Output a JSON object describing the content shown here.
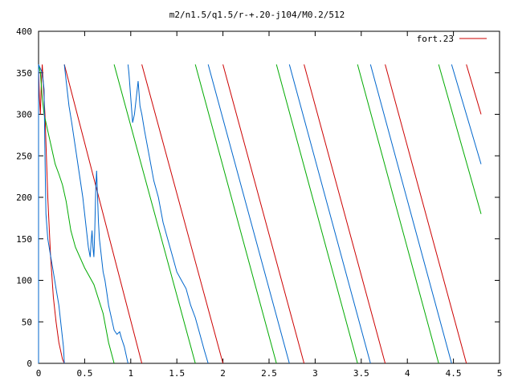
{
  "chart_data": {
    "type": "line",
    "title": "m2/n1.5/q1.5/r-+.20-j104/M0.2/512",
    "xlabel": "",
    "ylabel": "",
    "xlim": [
      0,
      5
    ],
    "ylim": [
      0,
      400
    ],
    "x_ticks": [
      0,
      0.5,
      1,
      1.5,
      2,
      2.5,
      3,
      3.5,
      4,
      4.5,
      5
    ],
    "x_tick_labels": [
      "0",
      "0.5",
      "1",
      "1.5",
      "2",
      "2.5",
      "3",
      "3.5",
      "4",
      "4.5",
      "5"
    ],
    "y_ticks": [
      0,
      50,
      100,
      150,
      200,
      250,
      300,
      350,
      400
    ],
    "y_tick_labels": [
      "0",
      "50",
      "100",
      "150",
      "200",
      "250",
      "300",
      "350",
      "400"
    ],
    "grid": false,
    "legend_position": "top-right",
    "legend": [
      {
        "label": "fort.23",
        "color": "#cc0000"
      }
    ],
    "series": [
      {
        "color": "#cc0000",
        "segments": [
          [
            [
              0.0,
              0
            ],
            [
              0.0,
              355
            ],
            [
              0.01,
              320
            ],
            [
              0.02,
              300
            ],
            [
              0.03,
              335
            ],
            [
              0.04,
              360
            ],
            [
              0.05,
              340
            ],
            [
              0.07,
              300
            ],
            [
              0.1,
              200
            ],
            [
              0.13,
              130
            ],
            [
              0.16,
              80
            ],
            [
              0.19,
              50
            ],
            [
              0.22,
              25
            ],
            [
              0.26,
              5
            ],
            [
              0.28,
              0
            ]
          ],
          [
            [
              0.28,
              360
            ],
            [
              1.12,
              0
            ]
          ],
          [
            [
              1.12,
              360
            ],
            [
              2.0,
              0
            ]
          ],
          [
            [
              2.0,
              360
            ],
            [
              2.88,
              0
            ]
          ],
          [
            [
              2.88,
              360
            ],
            [
              3.76,
              0
            ]
          ],
          [
            [
              3.76,
              360
            ],
            [
              4.64,
              0
            ]
          ],
          [
            [
              4.64,
              360
            ],
            [
              4.8,
              300
            ]
          ]
        ]
      },
      {
        "color": "#00aa00",
        "segments": [
          [
            [
              0.0,
              360
            ],
            [
              0.02,
              350
            ],
            [
              0.04,
              320
            ],
            [
              0.06,
              300
            ],
            [
              0.1,
              280
            ],
            [
              0.14,
              260
            ],
            [
              0.18,
              240
            ],
            [
              0.22,
              228
            ],
            [
              0.26,
              215
            ],
            [
              0.3,
              195
            ],
            [
              0.35,
              160
            ],
            [
              0.4,
              140
            ],
            [
              0.5,
              115
            ],
            [
              0.6,
              95
            ],
            [
              0.7,
              60
            ],
            [
              0.76,
              25
            ],
            [
              0.82,
              0
            ]
          ],
          [
            [
              0.82,
              360
            ],
            [
              1.7,
              0
            ]
          ],
          [
            [
              1.7,
              360
            ],
            [
              2.58,
              0
            ]
          ],
          [
            [
              2.58,
              360
            ],
            [
              3.46,
              0
            ]
          ],
          [
            [
              3.46,
              360
            ],
            [
              4.34,
              0
            ]
          ],
          [
            [
              4.34,
              360
            ],
            [
              4.8,
              180
            ]
          ]
        ]
      },
      {
        "color": "#0066cc",
        "segments": [
          [
            [
              0.0,
              0
            ],
            [
              0.0,
              360
            ],
            [
              0.02,
              355
            ],
            [
              0.04,
              350
            ],
            [
              0.06,
              330
            ],
            [
              0.07,
              250
            ],
            [
              0.08,
              180
            ],
            [
              0.1,
              150
            ],
            [
              0.13,
              130
            ],
            [
              0.16,
              110
            ],
            [
              0.19,
              90
            ],
            [
              0.22,
              70
            ],
            [
              0.25,
              40
            ],
            [
              0.27,
              20
            ],
            [
              0.28,
              0
            ]
          ],
          [
            [
              0.28,
              360
            ],
            [
              0.3,
              340
            ],
            [
              0.33,
              310
            ],
            [
              0.36,
              290
            ],
            [
              0.4,
              260
            ],
            [
              0.44,
              230
            ],
            [
              0.48,
              200
            ],
            [
              0.5,
              180
            ],
            [
              0.52,
              160
            ],
            [
              0.54,
              140
            ],
            [
              0.56,
              128
            ],
            [
              0.57,
              145
            ],
            [
              0.58,
              160
            ],
            [
              0.59,
              140
            ],
            [
              0.6,
              128
            ],
            [
              0.61,
              160
            ],
            [
              0.62,
              210
            ],
            [
              0.63,
              232
            ],
            [
              0.64,
              200
            ],
            [
              0.65,
              170
            ],
            [
              0.66,
              150
            ],
            [
              0.68,
              130
            ],
            [
              0.7,
              110
            ],
            [
              0.72,
              100
            ],
            [
              0.74,
              85
            ],
            [
              0.76,
              70
            ],
            [
              0.78,
              60
            ],
            [
              0.8,
              50
            ],
            [
              0.82,
              40
            ],
            [
              0.85,
              35
            ],
            [
              0.88,
              38
            ],
            [
              0.9,
              30
            ],
            [
              0.93,
              20
            ],
            [
              0.96,
              5
            ],
            [
              0.97,
              0
            ]
          ],
          [
            [
              0.97,
              360
            ],
            [
              0.98,
              350
            ],
            [
              1.0,
              320
            ],
            [
              1.02,
              290
            ],
            [
              1.04,
              300
            ],
            [
              1.06,
              320
            ],
            [
              1.08,
              340
            ],
            [
              1.1,
              310
            ],
            [
              1.12,
              300
            ],
            [
              1.15,
              280
            ],
            [
              1.2,
              250
            ],
            [
              1.25,
              220
            ],
            [
              1.3,
              200
            ],
            [
              1.35,
              170
            ],
            [
              1.4,
              150
            ],
            [
              1.45,
              130
            ],
            [
              1.5,
              110
            ],
            [
              1.55,
              100
            ],
            [
              1.6,
              90
            ],
            [
              1.65,
              70
            ],
            [
              1.7,
              55
            ],
            [
              1.75,
              35
            ],
            [
              1.8,
              15
            ],
            [
              1.84,
              0
            ]
          ],
          [
            [
              1.84,
              360
            ],
            [
              2.72,
              0
            ]
          ],
          [
            [
              2.72,
              360
            ],
            [
              3.6,
              0
            ]
          ],
          [
            [
              3.6,
              360
            ],
            [
              4.48,
              0
            ]
          ],
          [
            [
              4.48,
              360
            ],
            [
              4.8,
              240
            ]
          ]
        ]
      }
    ]
  }
}
